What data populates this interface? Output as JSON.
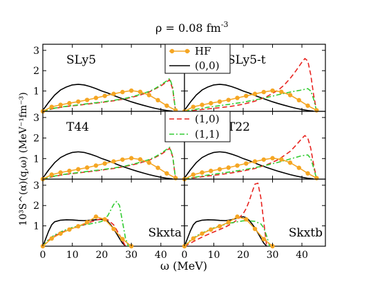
{
  "figure": {
    "title": "ρ = 0.08 fm",
    "title_sup": "-3",
    "xlabel": "ω (MeV)",
    "ylabel": "10³S^(α)(q,ω) (MeV⁻¹fm⁻³)"
  },
  "legend_top": {
    "hf": "HF",
    "s00": "(0,0)"
  },
  "legend_mid": {
    "s10": "(1,0)",
    "s11": "(1,1)"
  },
  "colors": {
    "s00": "#000000",
    "s10": "#e8231f",
    "s11": "#33cc33",
    "hf": "#f5a623"
  },
  "chart_data": {
    "type": "line",
    "xlim": [
      0,
      48
    ],
    "ylim": [
      0,
      3.3
    ],
    "xticks": [
      0,
      10,
      20,
      30,
      40
    ],
    "yticks": [
      1,
      2,
      3
    ],
    "grid": false,
    "series_styles": {
      "(0,0)": "solid black",
      "(1,0)": "dashed red",
      "(1,1)": "dash-dot green",
      "HF": "orange line with circle markers"
    },
    "panels": [
      {
        "label": "SLy5",
        "series": [
          {
            "name": "(0,0)",
            "x": [
              0,
              2,
              4,
              6,
              8,
              10,
              12,
              14,
              16,
              18,
              20,
              22,
              24,
              26,
              28,
              30,
              32,
              34,
              36,
              38,
              40,
              42,
              44
            ],
            "y": [
              0.05,
              0.45,
              0.8,
              1.05,
              1.2,
              1.3,
              1.33,
              1.3,
              1.22,
              1.12,
              1.0,
              0.9,
              0.78,
              0.67,
              0.57,
              0.47,
              0.38,
              0.3,
              0.22,
              0.15,
              0.09,
              0.04,
              0.01
            ]
          },
          {
            "name": "(1,0)",
            "x": [
              0,
              4,
              8,
              12,
              16,
              20,
              24,
              28,
              32,
              36,
              38,
              40,
              42,
              43,
              44,
              45
            ],
            "y": [
              0.0,
              0.15,
              0.24,
              0.3,
              0.37,
              0.44,
              0.52,
              0.62,
              0.76,
              0.95,
              1.1,
              1.25,
              1.45,
              1.55,
              1.1,
              0.0
            ]
          },
          {
            "name": "(1,1)",
            "x": [
              0,
              4,
              8,
              12,
              16,
              20,
              24,
              28,
              32,
              36,
              38,
              40,
              42,
              43,
              44,
              45
            ],
            "y": [
              0.0,
              0.16,
              0.25,
              0.32,
              0.39,
              0.46,
              0.54,
              0.64,
              0.79,
              0.98,
              1.12,
              1.3,
              1.5,
              1.62,
              1.2,
              0.0
            ]
          },
          {
            "name": "HF",
            "x": [
              0,
              3,
              6,
              9,
              12,
              15,
              18,
              21,
              24,
              27,
              30,
              33,
              36,
              39,
              42,
              45
            ],
            "y": [
              0.0,
              0.22,
              0.32,
              0.4,
              0.48,
              0.56,
              0.66,
              0.76,
              0.86,
              0.95,
              1.02,
              0.96,
              0.8,
              0.55,
              0.28,
              0.05
            ]
          }
        ]
      },
      {
        "label": "SLy5-t",
        "series": [
          {
            "name": "(0,0)",
            "x": [
              0,
              2,
              4,
              6,
              8,
              10,
              12,
              14,
              16,
              18,
              20,
              22,
              24,
              26,
              28,
              30,
              32,
              34,
              36,
              38,
              40,
              42,
              44
            ],
            "y": [
              0.05,
              0.45,
              0.8,
              1.05,
              1.2,
              1.3,
              1.33,
              1.3,
              1.22,
              1.12,
              1.0,
              0.9,
              0.78,
              0.67,
              0.57,
              0.47,
              0.38,
              0.3,
              0.22,
              0.15,
              0.09,
              0.04,
              0.01
            ]
          },
          {
            "name": "(1,0)",
            "x": [
              0,
              4,
              8,
              12,
              16,
              20,
              24,
              28,
              32,
              34,
              36,
              38,
              40,
              41,
              42,
              43,
              44,
              45
            ],
            "y": [
              0.0,
              0.06,
              0.12,
              0.18,
              0.25,
              0.35,
              0.5,
              0.72,
              1.05,
              1.3,
              1.62,
              2.0,
              2.42,
              2.6,
              2.48,
              1.8,
              0.8,
              0.0
            ]
          },
          {
            "name": "(1,1)",
            "x": [
              0,
              4,
              8,
              12,
              16,
              20,
              24,
              28,
              32,
              36,
              38,
              40,
              42,
              43,
              44,
              45
            ],
            "y": [
              0.0,
              0.1,
              0.2,
              0.28,
              0.36,
              0.45,
              0.56,
              0.68,
              0.82,
              0.95,
              1.0,
              1.05,
              1.12,
              1.0,
              0.6,
              0.0
            ]
          },
          {
            "name": "HF",
            "x": [
              0,
              3,
              6,
              9,
              12,
              15,
              18,
              21,
              24,
              27,
              30,
              33,
              36,
              39,
              42,
              45
            ],
            "y": [
              0.0,
              0.22,
              0.32,
              0.4,
              0.48,
              0.56,
              0.66,
              0.76,
              0.86,
              0.95,
              1.02,
              0.96,
              0.8,
              0.55,
              0.28,
              0.05
            ]
          }
        ]
      },
      {
        "label": "T44",
        "series": [
          {
            "name": "(0,0)",
            "x": [
              0,
              2,
              4,
              6,
              8,
              10,
              12,
              14,
              16,
              18,
              20,
              22,
              24,
              26,
              28,
              30,
              32,
              34,
              36,
              38,
              40,
              42,
              44
            ],
            "y": [
              0.05,
              0.45,
              0.8,
              1.05,
              1.2,
              1.3,
              1.33,
              1.3,
              1.22,
              1.12,
              1.0,
              0.9,
              0.78,
              0.67,
              0.57,
              0.47,
              0.38,
              0.3,
              0.22,
              0.15,
              0.09,
              0.04,
              0.01
            ]
          },
          {
            "name": "(1,0)",
            "x": [
              0,
              4,
              8,
              12,
              16,
              20,
              24,
              28,
              32,
              36,
              38,
              40,
              42,
              43,
              44,
              45
            ],
            "y": [
              0.0,
              0.14,
              0.24,
              0.3,
              0.37,
              0.44,
              0.52,
              0.62,
              0.75,
              0.92,
              1.05,
              1.2,
              1.4,
              1.5,
              1.1,
              0.0
            ]
          },
          {
            "name": "(1,1)",
            "x": [
              0,
              4,
              8,
              12,
              16,
              20,
              24,
              28,
              32,
              36,
              38,
              40,
              42,
              43,
              44,
              45
            ],
            "y": [
              0.0,
              0.15,
              0.25,
              0.32,
              0.39,
              0.46,
              0.54,
              0.64,
              0.78,
              0.95,
              1.08,
              1.25,
              1.45,
              1.55,
              1.15,
              0.0
            ]
          },
          {
            "name": "HF",
            "x": [
              0,
              3,
              6,
              9,
              12,
              15,
              18,
              21,
              24,
              27,
              30,
              33,
              36,
              39,
              42,
              45
            ],
            "y": [
              0.0,
              0.22,
              0.32,
              0.4,
              0.48,
              0.56,
              0.66,
              0.76,
              0.86,
              0.95,
              1.02,
              0.96,
              0.8,
              0.55,
              0.28,
              0.05
            ]
          }
        ]
      },
      {
        "label": "T22",
        "series": [
          {
            "name": "(0,0)",
            "x": [
              0,
              2,
              4,
              6,
              8,
              10,
              12,
              14,
              16,
              18,
              20,
              22,
              24,
              26,
              28,
              30,
              32,
              34,
              36,
              38,
              40,
              42,
              44
            ],
            "y": [
              0.05,
              0.45,
              0.8,
              1.05,
              1.2,
              1.3,
              1.33,
              1.3,
              1.22,
              1.12,
              1.0,
              0.9,
              0.78,
              0.67,
              0.57,
              0.47,
              0.38,
              0.3,
              0.22,
              0.15,
              0.09,
              0.04,
              0.01
            ]
          },
          {
            "name": "(1,0)",
            "x": [
              0,
              4,
              8,
              12,
              16,
              20,
              24,
              28,
              32,
              36,
              38,
              40,
              41,
              42,
              43,
              44,
              45
            ],
            "y": [
              0.0,
              0.08,
              0.15,
              0.22,
              0.3,
              0.4,
              0.52,
              0.7,
              0.95,
              1.35,
              1.65,
              1.98,
              2.12,
              2.0,
              1.5,
              0.7,
              0.0
            ]
          },
          {
            "name": "(1,1)",
            "x": [
              0,
              4,
              8,
              12,
              16,
              20,
              24,
              28,
              32,
              36,
              38,
              40,
              42,
              43,
              44,
              45
            ],
            "y": [
              0.0,
              0.1,
              0.2,
              0.28,
              0.36,
              0.45,
              0.56,
              0.68,
              0.82,
              0.98,
              1.06,
              1.14,
              1.18,
              1.0,
              0.55,
              0.0
            ]
          },
          {
            "name": "HF",
            "x": [
              0,
              3,
              6,
              9,
              12,
              15,
              18,
              21,
              24,
              27,
              30,
              33,
              36,
              39,
              42,
              45
            ],
            "y": [
              0.0,
              0.22,
              0.32,
              0.4,
              0.48,
              0.56,
              0.66,
              0.76,
              0.86,
              0.95,
              1.02,
              0.96,
              0.8,
              0.55,
              0.28,
              0.05
            ]
          }
        ]
      },
      {
        "label": "Skxta",
        "series": [
          {
            "name": "(0,0)",
            "x": [
              0,
              2,
              3,
              4,
              6,
              8,
              10,
              12,
              14,
              16,
              18,
              20,
              21,
              22,
              23,
              24,
              25,
              26,
              27,
              28
            ],
            "y": [
              0.0,
              0.75,
              1.05,
              1.2,
              1.28,
              1.3,
              1.29,
              1.27,
              1.26,
              1.28,
              1.3,
              1.32,
              1.3,
              1.22,
              1.05,
              0.85,
              0.62,
              0.38,
              0.15,
              0.0
            ]
          },
          {
            "name": "(1,0)",
            "x": [
              0,
              2,
              4,
              6,
              8,
              10,
              12,
              14,
              16,
              18,
              20,
              22,
              24,
              25,
              26,
              27,
              28
            ],
            "y": [
              0.0,
              0.3,
              0.5,
              0.65,
              0.78,
              0.88,
              0.95,
              1.05,
              1.18,
              1.28,
              1.35,
              1.3,
              1.05,
              0.8,
              0.55,
              0.28,
              0.0
            ]
          },
          {
            "name": "(1,1)",
            "x": [
              0,
              2,
              4,
              6,
              8,
              10,
              12,
              14,
              16,
              18,
              20,
              22,
              24,
              25,
              26,
              27,
              28,
              29
            ],
            "y": [
              0.0,
              0.35,
              0.55,
              0.7,
              0.82,
              0.92,
              1.0,
              1.05,
              1.1,
              1.15,
              1.22,
              1.5,
              2.05,
              2.2,
              2.0,
              1.2,
              0.4,
              0.0
            ]
          },
          {
            "name": "HF",
            "x": [
              0,
              3,
              6,
              9,
              12,
              15,
              18,
              21,
              24,
              27,
              30
            ],
            "y": [
              0.0,
              0.38,
              0.62,
              0.82,
              0.98,
              1.18,
              1.45,
              1.32,
              0.85,
              0.35,
              0.0
            ]
          }
        ]
      },
      {
        "label": "Skxtb",
        "series": [
          {
            "name": "(0,0)",
            "x": [
              0,
              2,
              3,
              4,
              6,
              8,
              10,
              12,
              14,
              16,
              18,
              20,
              21,
              22,
              23,
              24,
              25,
              26,
              27,
              28
            ],
            "y": [
              0.0,
              0.75,
              1.05,
              1.2,
              1.28,
              1.3,
              1.29,
              1.27,
              1.26,
              1.3,
              1.38,
              1.45,
              1.4,
              1.28,
              1.1,
              0.9,
              0.65,
              0.4,
              0.15,
              0.0
            ]
          },
          {
            "name": "(1,0)",
            "x": [
              0,
              2,
              4,
              6,
              8,
              10,
              12,
              14,
              16,
              18,
              20,
              21,
              22,
              23,
              24,
              25,
              26,
              27,
              28
            ],
            "y": [
              0.0,
              0.15,
              0.3,
              0.45,
              0.58,
              0.7,
              0.82,
              0.95,
              1.1,
              1.3,
              1.6,
              1.85,
              2.2,
              2.65,
              3.05,
              3.1,
              2.4,
              1.2,
              0.0
            ]
          },
          {
            "name": "(1,1)",
            "x": [
              0,
              2,
              4,
              6,
              8,
              10,
              12,
              14,
              16,
              18,
              20,
              22,
              24,
              26,
              27,
              28,
              29
            ],
            "y": [
              0.0,
              0.3,
              0.5,
              0.65,
              0.78,
              0.9,
              1.0,
              1.08,
              1.15,
              1.2,
              1.25,
              1.25,
              1.22,
              1.1,
              0.9,
              0.5,
              0.0
            ]
          },
          {
            "name": "HF",
            "x": [
              0,
              3,
              6,
              9,
              12,
              15,
              18,
              21,
              24,
              27,
              30
            ],
            "y": [
              0.0,
              0.38,
              0.62,
              0.82,
              0.98,
              1.18,
              1.45,
              1.32,
              0.85,
              0.35,
              0.0
            ]
          }
        ]
      }
    ]
  }
}
